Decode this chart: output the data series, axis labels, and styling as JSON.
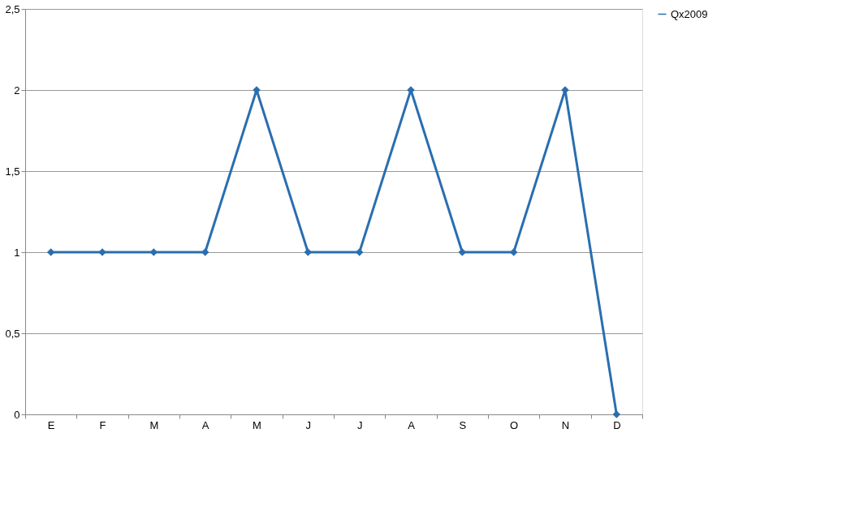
{
  "chart_data": {
    "type": "line",
    "categories": [
      "E",
      "F",
      "M",
      "A",
      "M",
      "J",
      "J",
      "A",
      "S",
      "O",
      "N",
      "D"
    ],
    "series": [
      {
        "name": "Qx2009",
        "color": "#2a6eb0",
        "values": [
          1,
          1,
          1,
          1,
          2,
          1,
          1,
          2,
          1,
          1,
          2,
          0
        ]
      }
    ],
    "ylim": [
      0,
      2.5
    ],
    "yticks": [
      0,
      {
        "value": 0.5,
        "label": "0,5"
      },
      1,
      {
        "value": 1.5,
        "label": "1,5"
      },
      2,
      {
        "value": 2.5,
        "label": "2,5"
      }
    ],
    "grid": "y",
    "legend": "right",
    "marker": "diamond",
    "line_style": "solid"
  }
}
